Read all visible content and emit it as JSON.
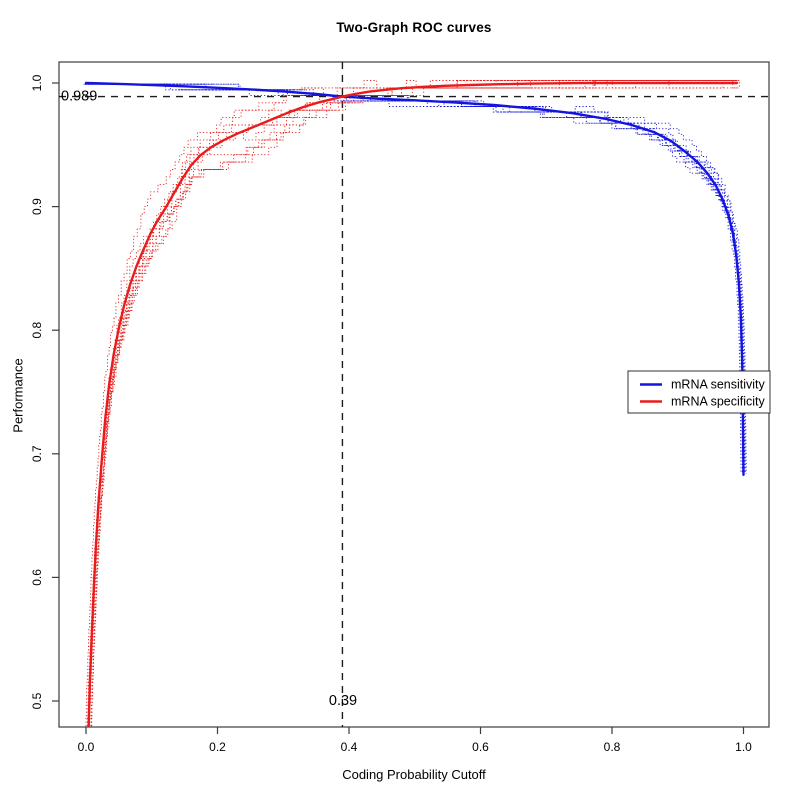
{
  "title": "Two-Graph ROC curves",
  "axes": {
    "x_label": "Coding Probability Cutoff",
    "y_label": "Performance",
    "x_ticks": [
      {
        "value": 0.0,
        "label": "0.0"
      },
      {
        "value": 0.2,
        "label": "0.2"
      },
      {
        "value": 0.4,
        "label": "0.4"
      },
      {
        "value": 0.6,
        "label": "0.6"
      },
      {
        "value": 0.8,
        "label": "0.8"
      },
      {
        "value": 1.0,
        "label": "1.0"
      }
    ],
    "y_ticks": [
      {
        "value": 0.5,
        "label": "0.5"
      },
      {
        "value": 0.6,
        "label": "0.6"
      },
      {
        "value": 0.7,
        "label": "0.7"
      },
      {
        "value": 0.8,
        "label": "0.8"
      },
      {
        "value": 0.9,
        "label": "0.9"
      },
      {
        "value": 1.0,
        "label": "1.0"
      }
    ]
  },
  "annotations": {
    "hline": {
      "value": 0.989,
      "label": "0.989"
    },
    "vline": {
      "value": 0.39,
      "label": "0.39"
    },
    "line_color": "#1c1c1c"
  },
  "legend": {
    "items": [
      {
        "label": "mRNA sensitivity",
        "color": "#1414dc"
      },
      {
        "label": "mRNA specificity",
        "color": "#e81c1c"
      }
    ]
  },
  "chart_data": {
    "type": "line",
    "title": "Two-Graph ROC curves",
    "xlabel": "Coding Probability Cutoff",
    "ylabel": "Performance",
    "xlim": [
      -0.04,
      1.04
    ],
    "ylim": [
      0.479,
      1.017
    ],
    "grid": false,
    "legend_position": "right",
    "crossing_point": {
      "x": 0.39,
      "y": 0.989
    },
    "series": [
      {
        "name": "mRNA sensitivity",
        "color": "#1414dc",
        "style": "solid",
        "points": [
          [
            0.0,
            1.0
          ],
          [
            0.05,
            0.9993
          ],
          [
            0.1,
            0.9983
          ],
          [
            0.15,
            0.9973
          ],
          [
            0.2,
            0.9961
          ],
          [
            0.25,
            0.9948
          ],
          [
            0.3,
            0.9932
          ],
          [
            0.35,
            0.9911
          ],
          [
            0.39,
            0.989
          ],
          [
            0.44,
            0.9874
          ],
          [
            0.5,
            0.986
          ],
          [
            0.56,
            0.9843
          ],
          [
            0.62,
            0.9822
          ],
          [
            0.68,
            0.9794
          ],
          [
            0.74,
            0.9756
          ],
          [
            0.79,
            0.971
          ],
          [
            0.83,
            0.966
          ],
          [
            0.865,
            0.96
          ],
          [
            0.89,
            0.953
          ],
          [
            0.91,
            0.945
          ],
          [
            0.93,
            0.936
          ],
          [
            0.945,
            0.927
          ],
          [
            0.958,
            0.917
          ],
          [
            0.968,
            0.906
          ],
          [
            0.977,
            0.893
          ],
          [
            0.984,
            0.878
          ],
          [
            0.989,
            0.86
          ],
          [
            0.993,
            0.838
          ],
          [
            0.996,
            0.81
          ],
          [
            0.998,
            0.775
          ],
          [
            0.999,
            0.74
          ],
          [
            1.0,
            0.683
          ]
        ]
      },
      {
        "name": "mRNA specificity",
        "color": "#e81c1c",
        "style": "solid",
        "points": [
          [
            0.004,
            0.479
          ],
          [
            0.006,
            0.515
          ],
          [
            0.009,
            0.555
          ],
          [
            0.012,
            0.592
          ],
          [
            0.015,
            0.625
          ],
          [
            0.019,
            0.66
          ],
          [
            0.024,
            0.695
          ],
          [
            0.029,
            0.727
          ],
          [
            0.035,
            0.755
          ],
          [
            0.042,
            0.78
          ],
          [
            0.05,
            0.802
          ],
          [
            0.058,
            0.82
          ],
          [
            0.067,
            0.837
          ],
          [
            0.077,
            0.852
          ],
          [
            0.088,
            0.866
          ],
          [
            0.098,
            0.878
          ],
          [
            0.108,
            0.888
          ],
          [
            0.12,
            0.898
          ],
          [
            0.133,
            0.91
          ],
          [
            0.147,
            0.923
          ],
          [
            0.16,
            0.9335
          ],
          [
            0.174,
            0.9415
          ],
          [
            0.19,
            0.948
          ],
          [
            0.21,
            0.954
          ],
          [
            0.23,
            0.959
          ],
          [
            0.255,
            0.9645
          ],
          [
            0.28,
            0.97
          ],
          [
            0.305,
            0.9755
          ],
          [
            0.33,
            0.9805
          ],
          [
            0.355,
            0.9845
          ],
          [
            0.375,
            0.987
          ],
          [
            0.39,
            0.989
          ],
          [
            0.41,
            0.9912
          ],
          [
            0.43,
            0.993
          ],
          [
            0.455,
            0.9945
          ],
          [
            0.48,
            0.9958
          ],
          [
            0.51,
            0.9968
          ],
          [
            0.545,
            0.9977
          ],
          [
            0.585,
            0.9984
          ],
          [
            0.63,
            0.999
          ],
          [
            0.68,
            0.9995
          ],
          [
            0.75,
            0.9999
          ],
          [
            0.82,
            1.0
          ],
          [
            0.9,
            1.0
          ],
          [
            0.99,
            1.0
          ]
        ]
      }
    ],
    "replicates": {
      "style": "dotted",
      "count_per_series": 9,
      "seed": 21,
      "params": [
        {
          "series": "mRNA sensitivity",
          "y_jitter_max": 0.022,
          "x_jitter_max": 0.016,
          "step_quantum": 0.0045,
          "envelope": [
            [
              0,
              0.06
            ],
            [
              0.2,
              0.14
            ],
            [
              0.4,
              0.2
            ],
            [
              0.6,
              0.3
            ],
            [
              0.75,
              0.45
            ],
            [
              0.85,
              0.7
            ],
            [
              0.92,
              1.0
            ],
            [
              0.96,
              1.0
            ],
            [
              0.985,
              0.6
            ],
            [
              0.995,
              0.25
            ],
            [
              1,
              0.08
            ]
          ]
        },
        {
          "series": "mRNA specificity",
          "y_jitter_max": 0.032,
          "x_jitter_max": 0.012,
          "step_quantum": 0.006,
          "envelope": [
            [
              0.004,
              0
            ],
            [
              0.015,
              0.35
            ],
            [
              0.04,
              0.75
            ],
            [
              0.08,
              1.0
            ],
            [
              0.22,
              1.0
            ],
            [
              0.3,
              0.7
            ],
            [
              0.4,
              0.35
            ],
            [
              0.5,
              0.2
            ],
            [
              0.65,
              0.1
            ],
            [
              0.8,
              0.07
            ],
            [
              0.99,
              0.05
            ]
          ]
        }
      ]
    }
  }
}
